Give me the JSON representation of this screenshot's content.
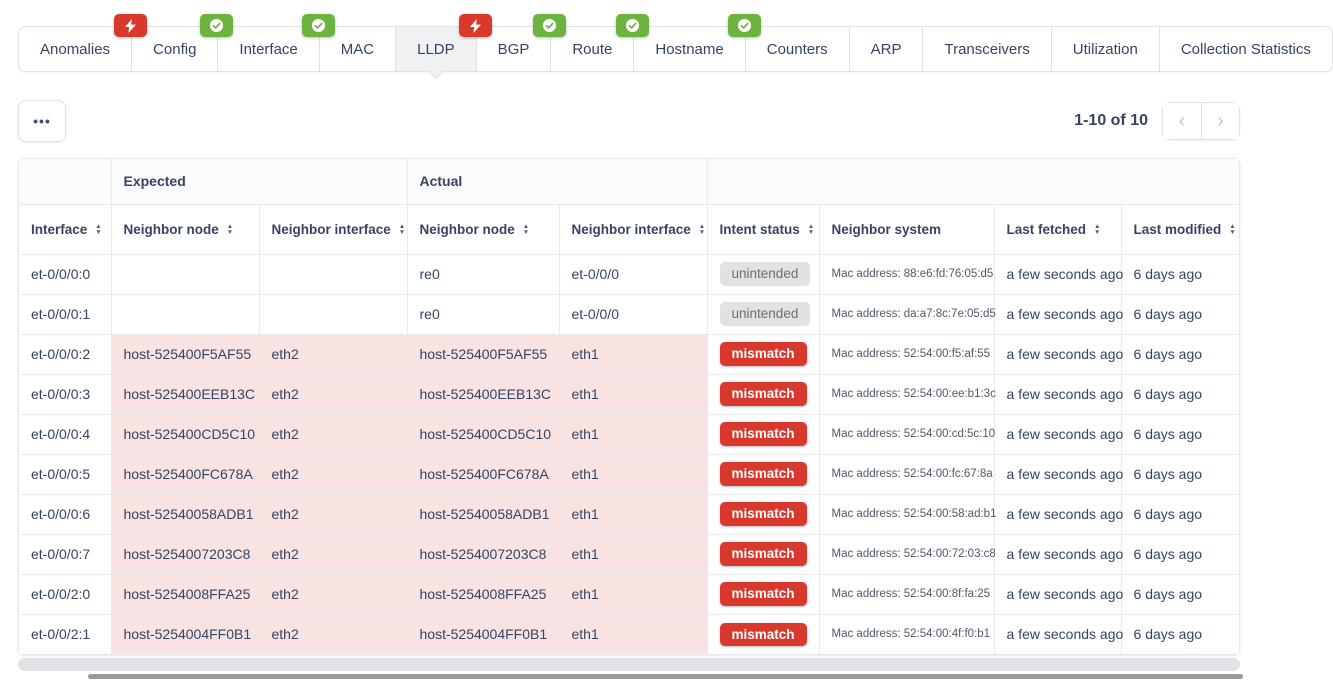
{
  "tabs": [
    {
      "label": "Anomalies",
      "badge": "lightning",
      "active": false
    },
    {
      "label": "Config",
      "badge": "check",
      "active": false
    },
    {
      "label": "Interface",
      "badge": "check",
      "active": false
    },
    {
      "label": "MAC",
      "badge": null,
      "active": false
    },
    {
      "label": "LLDP",
      "badge": "lightning",
      "active": true
    },
    {
      "label": "BGP",
      "badge": "check",
      "active": false
    },
    {
      "label": "Route",
      "badge": "check",
      "active": false
    },
    {
      "label": "Hostname",
      "badge": "check",
      "active": false
    },
    {
      "label": "Counters",
      "badge": null,
      "active": false
    },
    {
      "label": "ARP",
      "badge": null,
      "active": false
    },
    {
      "label": "Transceivers",
      "badge": null,
      "active": false
    },
    {
      "label": "Utilization",
      "badge": null,
      "active": false
    },
    {
      "label": "Collection Statistics",
      "badge": null,
      "active": false
    }
  ],
  "toolbar": {
    "more_label": "•••",
    "pagination": {
      "range_text": "1-10 of 10",
      "prev": "‹",
      "next": "›"
    }
  },
  "table": {
    "group_headers": [
      {
        "label": "",
        "span": 1
      },
      {
        "label": "Expected",
        "span": 2
      },
      {
        "label": "Actual",
        "span": 2
      },
      {
        "label": "",
        "span": 4
      }
    ],
    "columns": [
      {
        "label": "Interface",
        "sortable": true
      },
      {
        "label": "Neighbor node",
        "sortable": true
      },
      {
        "label": "Neighbor interface",
        "sortable": true
      },
      {
        "label": "Neighbor node",
        "sortable": true
      },
      {
        "label": "Neighbor interface",
        "sortable": true
      },
      {
        "label": "Intent status",
        "sortable": true
      },
      {
        "label": "Neighbor system",
        "sortable": false
      },
      {
        "label": "Last fetched",
        "sortable": true
      },
      {
        "label": "Last modified",
        "sortable": true
      }
    ],
    "rows": [
      {
        "interface": "et-0/0/0:0",
        "expected_node": "",
        "expected_iface": "",
        "actual_node": "re0",
        "actual_iface": "et-0/0/0",
        "status": "unintended",
        "neighbor_system": "Mac address: 88:e6:fd:76:05:d5",
        "last_fetched": "a few seconds ago",
        "last_modified": "6 days ago"
      },
      {
        "interface": "et-0/0/0:1",
        "expected_node": "",
        "expected_iface": "",
        "actual_node": "re0",
        "actual_iface": "et-0/0/0",
        "status": "unintended",
        "neighbor_system": "Mac address: da:a7:8c:7e:05:d5",
        "last_fetched": "a few seconds ago",
        "last_modified": "6 days ago"
      },
      {
        "interface": "et-0/0/0:2",
        "expected_node": "host-525400F5AF55",
        "expected_iface": "eth2",
        "actual_node": "host-525400F5AF55",
        "actual_iface": "eth1",
        "status": "mismatch",
        "neighbor_system": "Mac address: 52:54:00:f5:af:55",
        "last_fetched": "a few seconds ago",
        "last_modified": "6 days ago"
      },
      {
        "interface": "et-0/0/0:3",
        "expected_node": "host-525400EEB13C",
        "expected_iface": "eth2",
        "actual_node": "host-525400EEB13C",
        "actual_iface": "eth1",
        "status": "mismatch",
        "neighbor_system": "Mac address: 52:54:00:ee:b1:3c",
        "last_fetched": "a few seconds ago",
        "last_modified": "6 days ago"
      },
      {
        "interface": "et-0/0/0:4",
        "expected_node": "host-525400CD5C10",
        "expected_iface": "eth2",
        "actual_node": "host-525400CD5C10",
        "actual_iface": "eth1",
        "status": "mismatch",
        "neighbor_system": "Mac address: 52:54:00:cd:5c:10",
        "last_fetched": "a few seconds ago",
        "last_modified": "6 days ago"
      },
      {
        "interface": "et-0/0/0:5",
        "expected_node": "host-525400FC678A",
        "expected_iface": "eth2",
        "actual_node": "host-525400FC678A",
        "actual_iface": "eth1",
        "status": "mismatch",
        "neighbor_system": "Mac address: 52:54:00:fc:67:8a",
        "last_fetched": "a few seconds ago",
        "last_modified": "6 days ago"
      },
      {
        "interface": "et-0/0/0:6",
        "expected_node": "host-52540058ADB1",
        "expected_iface": "eth2",
        "actual_node": "host-52540058ADB1",
        "actual_iface": "eth1",
        "status": "mismatch",
        "neighbor_system": "Mac address: 52:54:00:58:ad:b1",
        "last_fetched": "a few seconds ago",
        "last_modified": "6 days ago"
      },
      {
        "interface": "et-0/0/0:7",
        "expected_node": "host-5254007203C8",
        "expected_iface": "eth2",
        "actual_node": "host-5254007203C8",
        "actual_iface": "eth1",
        "status": "mismatch",
        "neighbor_system": "Mac address: 52:54:00:72:03:c8",
        "last_fetched": "a few seconds ago",
        "last_modified": "6 days ago"
      },
      {
        "interface": "et-0/0/2:0",
        "expected_node": "host-5254008FFA25",
        "expected_iface": "eth2",
        "actual_node": "host-5254008FFA25",
        "actual_iface": "eth1",
        "status": "mismatch",
        "neighbor_system": "Mac address: 52:54:00:8f:fa:25",
        "last_fetched": "a few seconds ago",
        "last_modified": "6 days ago"
      },
      {
        "interface": "et-0/0/2:1",
        "expected_node": "host-5254004FF0B1",
        "expected_iface": "eth2",
        "actual_node": "host-5254004FF0B1",
        "actual_iface": "eth1",
        "status": "mismatch",
        "neighbor_system": "Mac address: 52:54:00:4f:f0:b1",
        "last_fetched": "a few seconds ago",
        "last_modified": "6 days ago"
      }
    ]
  },
  "colors": {
    "error_red": "#d9392c",
    "ok_green": "#6db33f",
    "mismatch_row_pink": "#f9e2e2",
    "unintended_gray": "#e2e2e2",
    "border": "#dfe1e6",
    "text": "#344563"
  }
}
